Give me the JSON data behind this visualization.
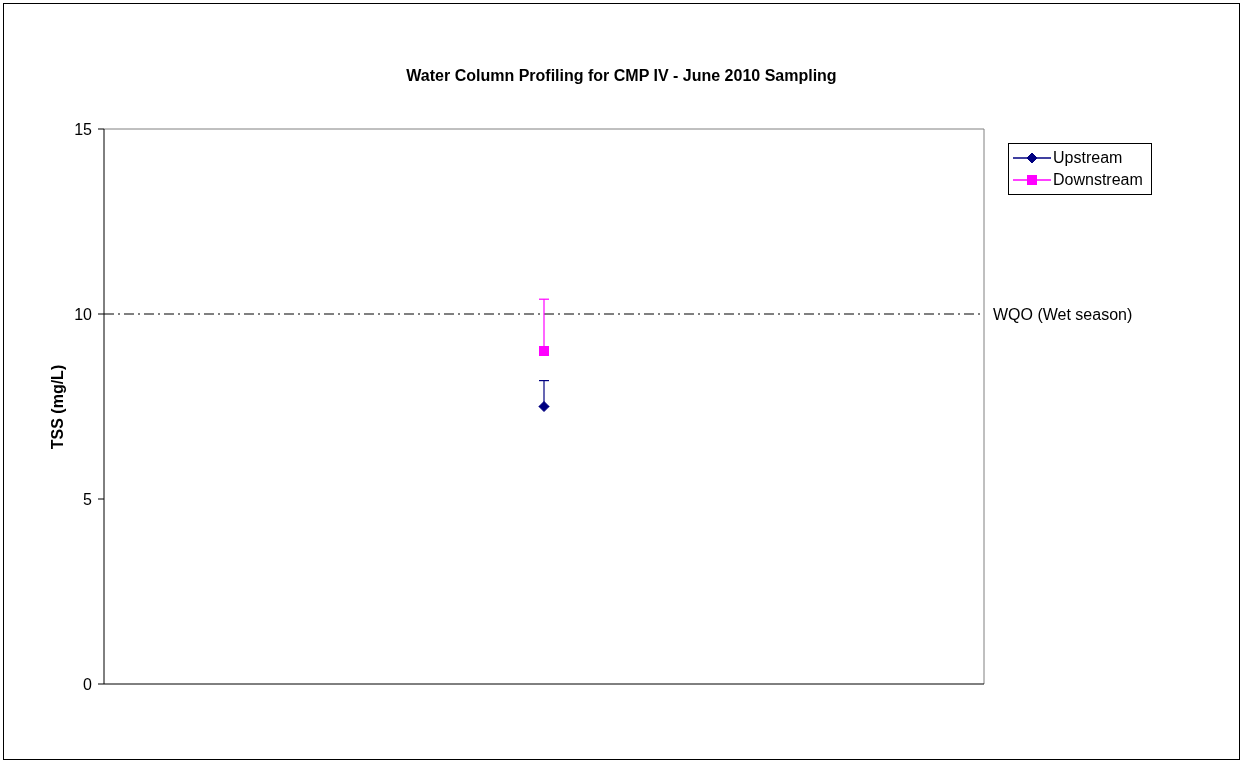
{
  "chart_data": {
    "type": "line",
    "title": "Water Column Profiling for CMP IV - June 2010 Sampling",
    "ylabel": "TSS (mg/L)",
    "categories": [
      null
    ],
    "series": [
      {
        "name": "Upstream",
        "color": "#000080",
        "marker": "diamond",
        "values": [
          7.5
        ],
        "errors": [
          [
            7.5,
            8.2
          ]
        ]
      },
      {
        "name": "Downstream",
        "color": "#ff00ff",
        "marker": "square",
        "values": [
          9.0
        ],
        "errors": [
          [
            9.0,
            10.4
          ]
        ]
      }
    ],
    "ylim": [
      0,
      15
    ],
    "yticks": [
      0,
      5,
      10,
      15
    ],
    "legend": "top right",
    "ref_lines": [
      {
        "axis": "y",
        "value": 10,
        "label": "WQO (Wet season)",
        "color": "#000000",
        "line_style": "dashdot"
      }
    ]
  }
}
